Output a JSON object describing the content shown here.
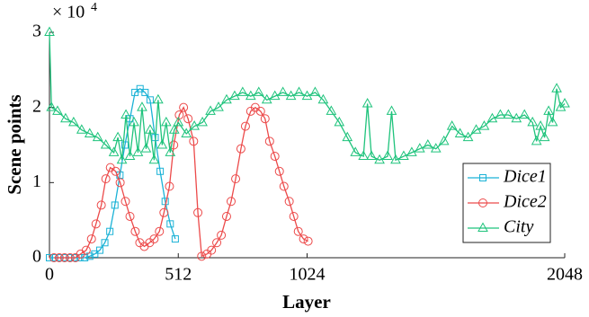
{
  "chart_data": {
    "type": "line",
    "y_multiplier": "× 10",
    "y_multiplier_exponent": "4",
    "x_label": "Layer",
    "y_label": "Scene points",
    "xlim": [
      0,
      2048
    ],
    "xticks": [
      0,
      512,
      1024,
      2048
    ],
    "ylim": [
      0,
      3
    ],
    "yticks": [
      0,
      1,
      2,
      3
    ],
    "legend": "lower right",
    "grid": false,
    "series": [
      {
        "name": "Dice1",
        "color": "#1ab2d6",
        "marker": "square",
        "x": [
          0,
          20,
          40,
          60,
          80,
          100,
          120,
          140,
          160,
          180,
          200,
          220,
          240,
          260,
          280,
          300,
          320,
          340,
          360,
          380,
          400,
          420,
          440,
          460,
          480,
          500
        ],
        "values": [
          0,
          0,
          0,
          0,
          0,
          0,
          0,
          0,
          0.02,
          0.05,
          0.1,
          0.2,
          0.35,
          0.7,
          1.1,
          1.5,
          1.85,
          2.2,
          2.25,
          2.2,
          2.1,
          1.6,
          1.15,
          0.75,
          0.45,
          0.25
        ]
      },
      {
        "name": "Dice2",
        "color": "#ec4a4a",
        "marker": "circle",
        "x": [
          18,
          39,
          60,
          82,
          103,
          124,
          146,
          167,
          185,
          206,
          224,
          242,
          263,
          281,
          302,
          320,
          341,
          359,
          377,
          398,
          416,
          437,
          455,
          477,
          494,
          516,
          533,
          551,
          573,
          590,
          605,
          626,
          644,
          665,
          683,
          704,
          722,
          740,
          761,
          779,
          800,
          818,
          839,
          857,
          875,
          896,
          914,
          932,
          953,
          971,
          989,
          1010,
          1028
        ],
        "values": [
          0,
          0,
          0,
          0,
          0,
          0.05,
          0.1,
          0.25,
          0.45,
          0.7,
          1.05,
          1.2,
          1.15,
          1.0,
          0.75,
          0.55,
          0.35,
          0.2,
          0.15,
          0.2,
          0.25,
          0.35,
          0.6,
          0.95,
          1.5,
          1.9,
          2.0,
          1.85,
          1.55,
          0.6,
          0.02,
          0.05,
          0.1,
          0.2,
          0.3,
          0.55,
          0.75,
          1.05,
          1.45,
          1.75,
          1.95,
          2.0,
          1.95,
          1.85,
          1.55,
          1.35,
          1.15,
          0.95,
          0.75,
          0.55,
          0.35,
          0.25,
          0.22
        ]
      },
      {
        "name": "City",
        "color": "#1fc37c",
        "marker": "triangle",
        "x": [
          0,
          8,
          32,
          64,
          96,
          128,
          160,
          192,
          224,
          256,
          272,
          288,
          304,
          320,
          336,
          352,
          368,
          384,
          400,
          416,
          432,
          448,
          464,
          480,
          496,
          512,
          544,
          576,
          608,
          640,
          672,
          704,
          736,
          768,
          800,
          832,
          864,
          896,
          928,
          960,
          992,
          1024,
          1056,
          1088,
          1120,
          1152,
          1184,
          1216,
          1248,
          1264,
          1280,
          1312,
          1344,
          1360,
          1376,
          1408,
          1440,
          1472,
          1504,
          1536,
          1568,
          1600,
          1632,
          1664,
          1696,
          1728,
          1760,
          1792,
          1824,
          1856,
          1888,
          1920,
          1936,
          1952,
          1968,
          1984,
          2000,
          2016,
          2032,
          2048
        ],
        "values": [
          3.0,
          2.0,
          1.95,
          1.85,
          1.8,
          1.7,
          1.65,
          1.6,
          1.5,
          1.4,
          1.6,
          1.3,
          1.9,
          1.35,
          1.8,
          1.4,
          2.0,
          1.45,
          1.7,
          1.3,
          2.1,
          1.5,
          1.8,
          1.4,
          1.7,
          1.8,
          1.65,
          1.75,
          1.8,
          1.95,
          2.0,
          2.1,
          2.15,
          2.2,
          2.15,
          2.2,
          2.1,
          2.15,
          2.2,
          2.15,
          2.2,
          2.15,
          2.2,
          2.1,
          1.95,
          1.8,
          1.6,
          1.4,
          1.35,
          2.05,
          1.35,
          1.3,
          1.35,
          1.95,
          1.3,
          1.35,
          1.4,
          1.45,
          1.5,
          1.45,
          1.55,
          1.75,
          1.65,
          1.6,
          1.7,
          1.75,
          1.85,
          1.9,
          1.9,
          1.85,
          1.9,
          1.8,
          1.55,
          1.75,
          1.6,
          1.95,
          1.8,
          2.25,
          2.0,
          2.05
        ]
      }
    ]
  }
}
